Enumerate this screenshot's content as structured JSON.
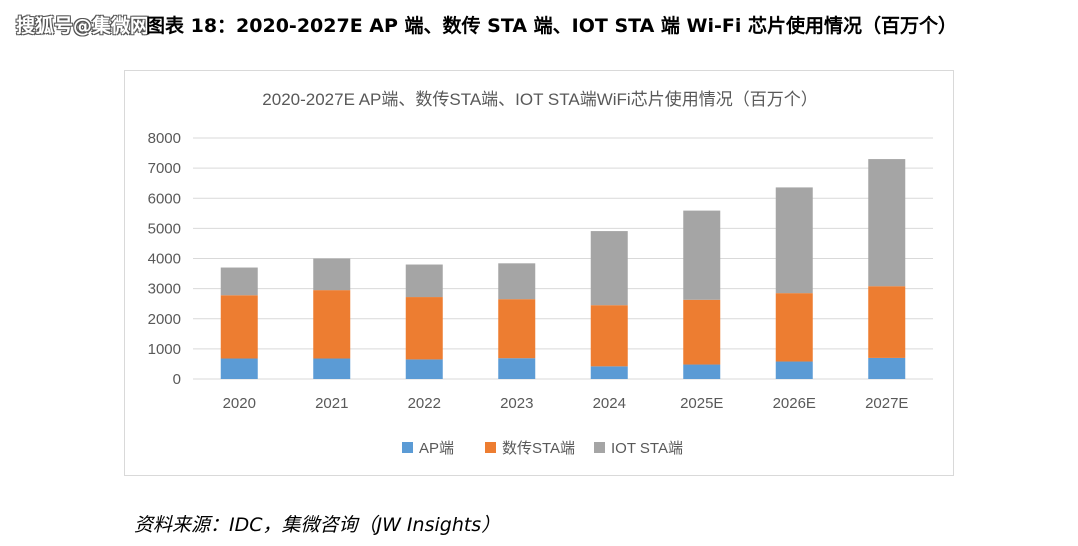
{
  "watermark": "搜狐号@集微网",
  "figure_title": "图表 18：2020-2027E AP 端、数传 STA 端、IOT STA 端 Wi-Fi 芯片使用情况（百万个）",
  "source": "资料来源：IDC，集微咨询（JW Insights）",
  "chart_data": {
    "type": "bar",
    "stacked": true,
    "title": "2020-2027E AP端、数传STA端、IOT STA端WiFi芯片使用情况（百万个）",
    "categories": [
      "2020",
      "2021",
      "2022",
      "2023",
      "2024",
      "2025E",
      "2026E",
      "2027E"
    ],
    "series": [
      {
        "name": "AP端",
        "color": "#5b9bd5",
        "values": [
          680,
          680,
          650,
          690,
          420,
          480,
          580,
          700
        ]
      },
      {
        "name": "数传STA端",
        "color": "#ed7d31",
        "values": [
          2100,
          2270,
          2070,
          1960,
          2030,
          2150,
          2270,
          2380
        ]
      },
      {
        "name": "IOT STA端",
        "color": "#a5a5a5",
        "values": [
          920,
          1050,
          1080,
          1190,
          2460,
          2960,
          3510,
          4220
        ]
      }
    ],
    "ylim": [
      0,
      8000
    ],
    "yticks": [
      "0",
      "1000",
      "2000",
      "3000",
      "4000",
      "5000",
      "6000",
      "7000",
      "8000"
    ],
    "grid": true,
    "legend_position": "bottom"
  }
}
